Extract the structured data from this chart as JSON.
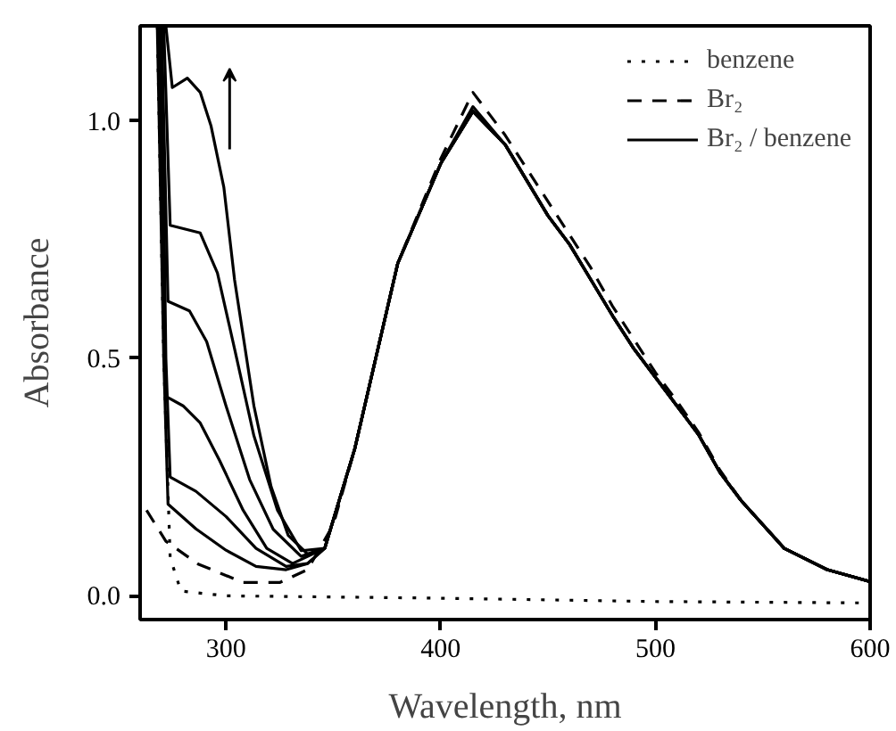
{
  "chart_data": {
    "type": "line",
    "xlabel": "Wavelength, nm",
    "ylabel": "Absorbance",
    "xlim": [
      260,
      600
    ],
    "ylim": [
      -0.05,
      1.2
    ],
    "xticks": [
      300,
      400,
      500,
      600
    ],
    "yticks": [
      {
        "value": 0,
        "label": "0.0"
      },
      0.5,
      {
        "value": 1,
        "label": "1.0"
      }
    ],
    "grid": false,
    "legend": "top right",
    "series": [
      {
        "name": "benzene",
        "color": "#000000",
        "line_style": "dotted",
        "x": [
          268,
          271,
          274,
          279,
          300,
          400,
          500,
          600
        ],
        "values": [
          1.2,
          0.5,
          0.08,
          0.01,
          0.0,
          -0.005,
          -0.012,
          -0.015
        ]
      },
      {
        "name": "Br₂",
        "color": "#000000",
        "line_style": "dashed",
        "x": [
          263,
          272,
          287,
          308,
          325,
          338,
          350,
          360,
          380,
          400,
          415,
          430,
          440,
          450,
          460,
          470,
          480,
          490,
          500,
          510,
          520,
          530,
          540,
          560,
          580,
          600
        ],
        "values": [
          0.18,
          0.115,
          0.067,
          0.028,
          0.028,
          0.055,
          0.15,
          0.31,
          0.7,
          0.92,
          1.06,
          0.97,
          0.9,
          0.83,
          0.76,
          0.69,
          0.61,
          0.54,
          0.47,
          0.41,
          0.345,
          0.265,
          0.2,
          0.1,
          0.055,
          0.03
        ]
      },
      {
        "name": "Br₂ / benzene",
        "color": "#000000",
        "line_style": "solid",
        "x": [
          272,
          275,
          282,
          288,
          293,
          299,
          304,
          313,
          321,
          329,
          338,
          346,
          360,
          380,
          400,
          415,
          430,
          440,
          450,
          460,
          470,
          480,
          490,
          500,
          510,
          520,
          530,
          540,
          560,
          580,
          600
        ],
        "values": [
          1.2,
          1.07,
          1.09,
          1.06,
          0.99,
          0.86,
          0.665,
          0.4,
          0.23,
          0.127,
          0.088,
          0.1,
          0.31,
          0.7,
          0.91,
          1.03,
          0.95,
          0.875,
          0.8,
          0.74,
          0.665,
          0.59,
          0.52,
          0.46,
          0.4,
          0.34,
          0.26,
          0.2,
          0.1,
          0.055,
          0.03
        ]
      },
      {
        "color": "#000000",
        "line_style": "solid",
        "x": [
          271,
          274,
          288,
          296,
          304,
          313,
          324,
          335,
          346,
          360,
          380,
          400,
          415,
          430,
          440,
          450,
          460,
          470,
          480,
          490,
          500,
          510,
          520,
          530,
          540,
          560,
          580,
          600
        ],
        "values": [
          1.2,
          0.78,
          0.764,
          0.68,
          0.52,
          0.337,
          0.18,
          0.095,
          0.1,
          0.31,
          0.7,
          0.91,
          1.02,
          0.95,
          0.875,
          0.8,
          0.74,
          0.665,
          0.59,
          0.52,
          0.46,
          0.4,
          0.34,
          0.26,
          0.2,
          0.1,
          0.055,
          0.03
        ]
      },
      {
        "color": "#000000",
        "line_style": "solid",
        "x": [
          270,
          273,
          283,
          291,
          300,
          311,
          322,
          335,
          346,
          360,
          380,
          400,
          415,
          430,
          440,
          450,
          460,
          470,
          480,
          490,
          500,
          510,
          520,
          530,
          540,
          560,
          580,
          600
        ],
        "values": [
          1.2,
          0.62,
          0.6,
          0.535,
          0.4,
          0.245,
          0.14,
          0.083,
          0.1,
          0.31,
          0.7,
          0.91,
          1.02,
          0.95,
          0.875,
          0.8,
          0.74,
          0.665,
          0.59,
          0.52,
          0.46,
          0.4,
          0.34,
          0.26,
          0.2,
          0.1,
          0.055,
          0.03
        ]
      },
      {
        "color": "#000000",
        "line_style": "solid",
        "x": [
          269,
          272,
          280,
          288,
          297,
          308,
          319,
          331,
          346,
          360,
          380,
          400,
          415,
          430,
          440,
          450,
          460,
          470,
          480,
          490,
          500,
          510,
          520,
          530,
          540,
          560,
          580,
          600
        ],
        "values": [
          1.2,
          0.42,
          0.4,
          0.364,
          0.285,
          0.18,
          0.1,
          0.068,
          0.1,
          0.31,
          0.7,
          0.91,
          1.02,
          0.95,
          0.875,
          0.8,
          0.74,
          0.665,
          0.59,
          0.52,
          0.46,
          0.4,
          0.34,
          0.26,
          0.2,
          0.1,
          0.055,
          0.03
        ]
      },
      {
        "color": "#000000",
        "line_style": "solid",
        "x": [
          270,
          272,
          274,
          286,
          300,
          314,
          328,
          338,
          346,
          360,
          380,
          400,
          415,
          430,
          440,
          450,
          460,
          470,
          480,
          490,
          500,
          510,
          520,
          530,
          540,
          560,
          580,
          600
        ],
        "values": [
          1.2,
          0.5,
          0.25,
          0.22,
          0.167,
          0.1,
          0.062,
          0.068,
          0.1,
          0.31,
          0.7,
          0.91,
          1.02,
          0.95,
          0.875,
          0.8,
          0.74,
          0.665,
          0.59,
          0.52,
          0.46,
          0.4,
          0.34,
          0.26,
          0.2,
          0.1,
          0.055,
          0.03
        ]
      },
      {
        "color": "#000000",
        "line_style": "solid",
        "x": [
          268,
          271,
          273,
          286,
          300,
          314,
          328,
          338,
          346,
          360,
          380,
          400,
          415,
          430,
          440,
          450,
          460,
          470,
          480,
          490,
          500,
          510,
          520,
          530,
          540,
          560,
          580,
          600
        ],
        "values": [
          1.2,
          0.5,
          0.193,
          0.141,
          0.096,
          0.062,
          0.055,
          0.068,
          0.1,
          0.31,
          0.7,
          0.91,
          1.02,
          0.95,
          0.875,
          0.8,
          0.74,
          0.665,
          0.59,
          0.52,
          0.46,
          0.4,
          0.34,
          0.26,
          0.2,
          0.1,
          0.055,
          0.03
        ]
      }
    ]
  }
}
